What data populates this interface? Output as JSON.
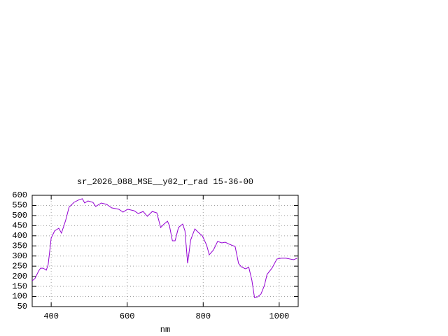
{
  "chart_data": {
    "type": "line",
    "title": "sr_2026_088_MSE__y02_r_rad 15-36-00",
    "x_label": "nm",
    "x": [
      350,
      357,
      367,
      372,
      379,
      387,
      392,
      400,
      409,
      420,
      427,
      438,
      447,
      460,
      471,
      482,
      488,
      497,
      510,
      517,
      532,
      546,
      559,
      578,
      589,
      601,
      618,
      629,
      642,
      653,
      666,
      678,
      688,
      697,
      706,
      711,
      719,
      726,
      735,
      746,
      752,
      759,
      767,
      778,
      787,
      798,
      809,
      816,
      827,
      838,
      849,
      858,
      869,
      884,
      893,
      900,
      911,
      920,
      928,
      935,
      943,
      952,
      961,
      968,
      981,
      994,
      1005,
      1018,
      1029,
      1038,
      1047
    ],
    "series": [
      {
        "color": "#9400d3",
        "values": [
          178,
          188,
          226,
          240,
          240,
          230,
          257,
          389,
          424,
          437,
          413,
          476,
          541,
          565,
          576,
          583,
          562,
          572,
          565,
          545,
          562,
          555,
          538,
          531,
          517,
          531,
          524,
          510,
          520,
          496,
          520,
          513,
          441,
          458,
          472,
          451,
          375,
          375,
          441,
          458,
          424,
          264,
          379,
          434,
          417,
          399,
          354,
          306,
          330,
          372,
          365,
          368,
          358,
          347,
          264,
          247,
          237,
          244,
          181,
          95,
          98,
          112,
          154,
          209,
          240,
          285,
          289,
          289,
          285,
          282,
          289
        ]
      }
    ],
    "xlim": [
      350,
      1050
    ],
    "xticks": [
      400,
      600,
      800,
      1000
    ],
    "ylim": [
      50,
      600
    ],
    "yticks": [
      50,
      100,
      150,
      200,
      250,
      300,
      350,
      400,
      450,
      500,
      550,
      600
    ],
    "grid": true
  }
}
